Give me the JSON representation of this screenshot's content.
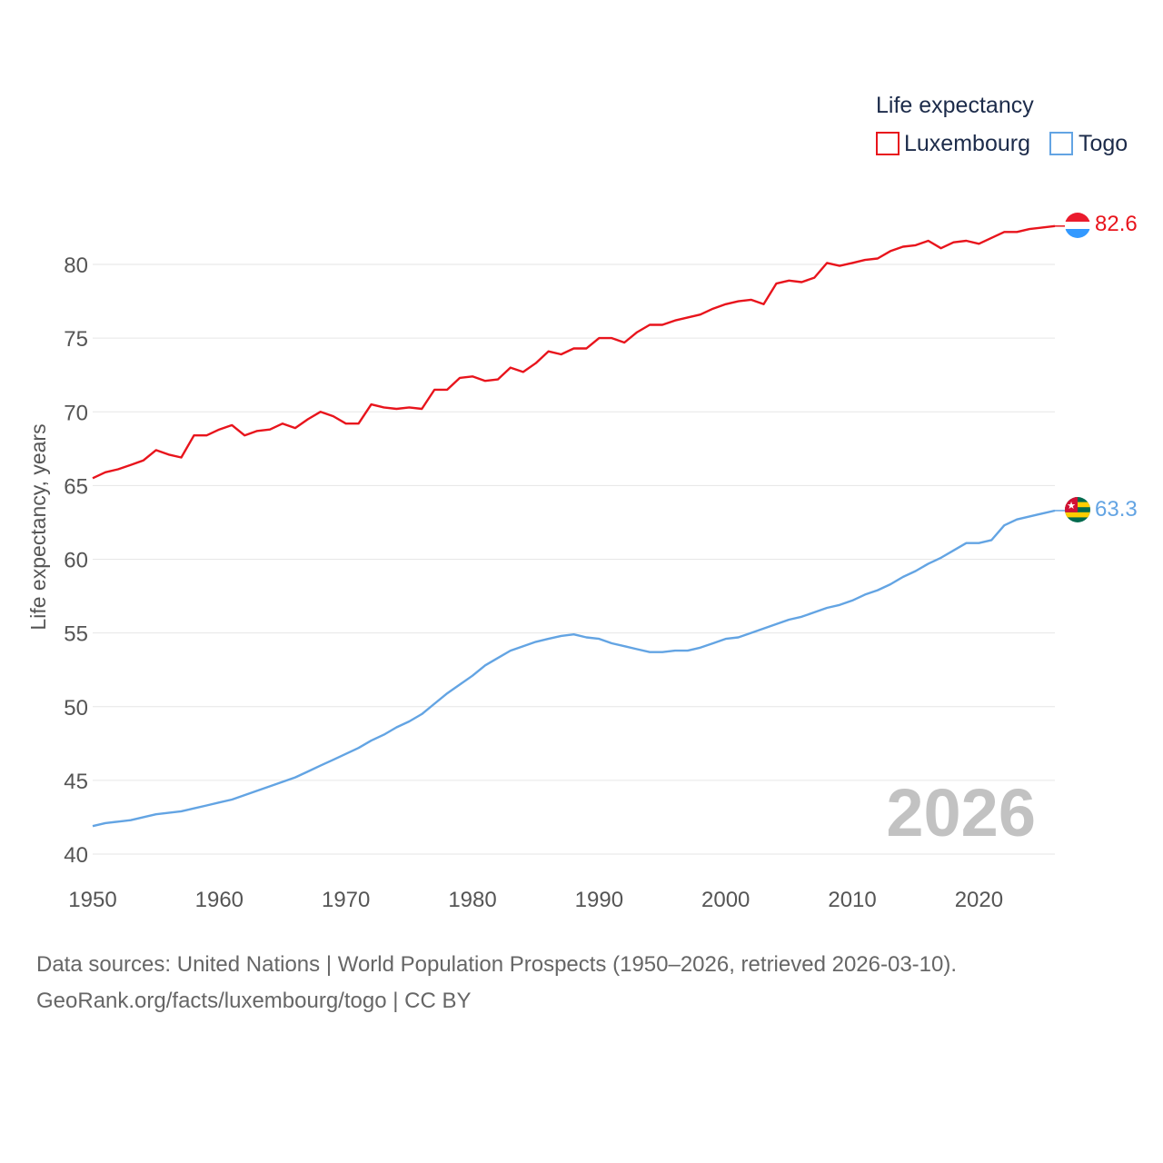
{
  "chart_data": {
    "type": "line",
    "legend_title": "Life expectancy",
    "ylabel": "Life expectancy, years",
    "xlabel": "",
    "xlim": [
      1950,
      2026
    ],
    "ylim": [
      40,
      84
    ],
    "x_ticks": [
      1950,
      1960,
      1970,
      1980,
      1990,
      2000,
      2010,
      2020
    ],
    "y_ticks": [
      40,
      45,
      50,
      55,
      60,
      65,
      70,
      75,
      80
    ],
    "year_label": "2026",
    "legend_position": "top-right",
    "grid": true,
    "x": [
      1950,
      1951,
      1952,
      1953,
      1954,
      1955,
      1956,
      1957,
      1958,
      1959,
      1960,
      1961,
      1962,
      1963,
      1964,
      1965,
      1966,
      1967,
      1968,
      1969,
      1970,
      1971,
      1972,
      1973,
      1974,
      1975,
      1976,
      1977,
      1978,
      1979,
      1980,
      1981,
      1982,
      1983,
      1984,
      1985,
      1986,
      1987,
      1988,
      1989,
      1990,
      1991,
      1992,
      1993,
      1994,
      1995,
      1996,
      1997,
      1998,
      1999,
      2000,
      2001,
      2002,
      2003,
      2004,
      2005,
      2006,
      2007,
      2008,
      2009,
      2010,
      2011,
      2012,
      2013,
      2014,
      2015,
      2016,
      2017,
      2018,
      2019,
      2020,
      2021,
      2022,
      2023,
      2024,
      2025,
      2026
    ],
    "series": [
      {
        "name": "Luxembourg",
        "color": "#e8141c",
        "end_label": "82.6",
        "flag": "luxembourg-flag",
        "values": [
          65.5,
          65.9,
          66.1,
          66.4,
          66.7,
          67.4,
          67.1,
          66.9,
          68.4,
          68.4,
          68.8,
          69.1,
          68.4,
          68.7,
          68.8,
          69.2,
          68.9,
          69.5,
          70.0,
          69.7,
          69.2,
          69.2,
          70.5,
          70.3,
          70.2,
          70.3,
          70.2,
          71.5,
          71.5,
          72.3,
          72.4,
          72.1,
          72.2,
          73.0,
          72.7,
          73.3,
          74.1,
          73.9,
          74.3,
          74.3,
          75.0,
          75.0,
          74.7,
          75.4,
          75.9,
          75.9,
          76.2,
          76.4,
          76.6,
          77.0,
          77.3,
          77.5,
          77.6,
          77.3,
          78.7,
          78.9,
          78.8,
          79.1,
          80.1,
          79.9,
          80.1,
          80.3,
          80.4,
          80.9,
          81.2,
          81.3,
          81.6,
          81.1,
          81.5,
          81.6,
          81.4,
          81.8,
          82.2,
          82.2,
          82.4,
          82.5,
          82.6
        ]
      },
      {
        "name": "Togo",
        "color": "#63a4e3",
        "end_label": "63.3",
        "flag": "togo-flag",
        "values": [
          41.9,
          42.1,
          42.2,
          42.3,
          42.5,
          42.7,
          42.8,
          42.9,
          43.1,
          43.3,
          43.5,
          43.7,
          44.0,
          44.3,
          44.6,
          44.9,
          45.2,
          45.6,
          46.0,
          46.4,
          46.8,
          47.2,
          47.7,
          48.1,
          48.6,
          49.0,
          49.5,
          50.2,
          50.9,
          51.5,
          52.1,
          52.8,
          53.3,
          53.8,
          54.1,
          54.4,
          54.6,
          54.8,
          54.9,
          54.7,
          54.6,
          54.3,
          54.1,
          53.9,
          53.7,
          53.7,
          53.8,
          53.8,
          54.0,
          54.3,
          54.6,
          54.7,
          55.0,
          55.3,
          55.6,
          55.9,
          56.1,
          56.4,
          56.7,
          56.9,
          57.2,
          57.6,
          57.9,
          58.3,
          58.8,
          59.2,
          59.7,
          60.1,
          60.6,
          61.1,
          61.1,
          61.3,
          62.3,
          62.7,
          62.9,
          63.1,
          63.3
        ]
      }
    ]
  },
  "footer": {
    "line1": "Data sources: United Nations | World Population Prospects (1950–2026, retrieved 2026-03-10).",
    "line2": "GeoRank.org/facts/luxembourg/togo | CC BY"
  }
}
